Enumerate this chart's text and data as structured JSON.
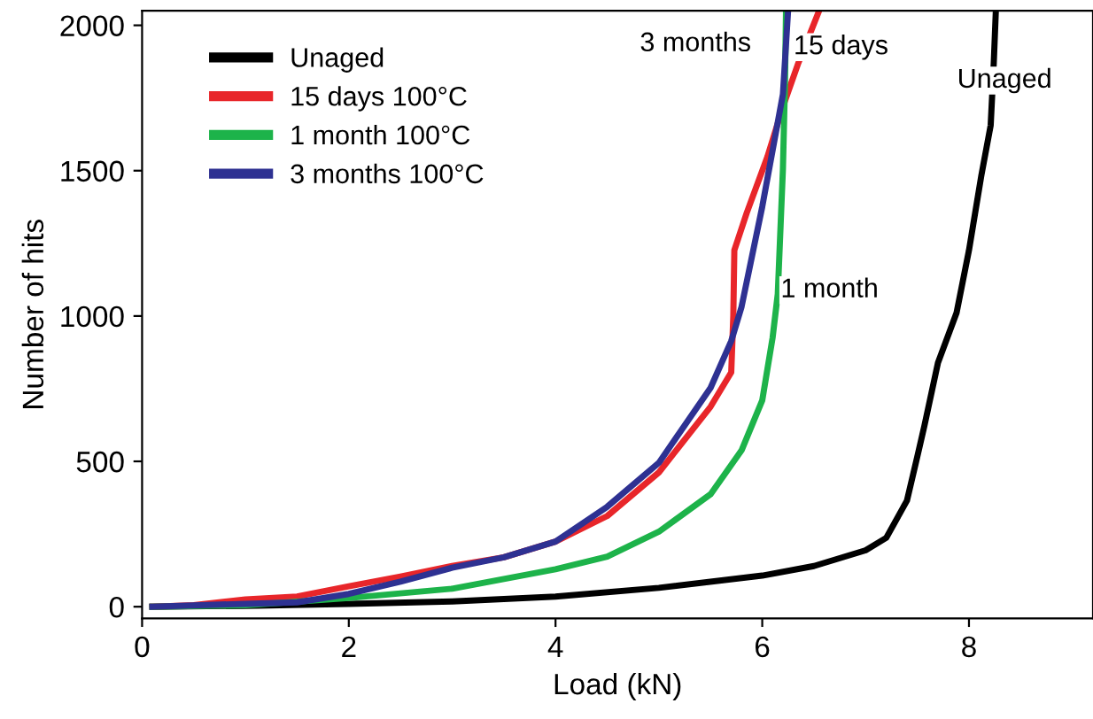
{
  "chart_data": {
    "type": "line",
    "xlabel": "Load (kN)",
    "ylabel": "Number of hits",
    "xlim": [
      0,
      9.2
    ],
    "ylim": [
      -40,
      2050
    ],
    "xticks": [
      0,
      2,
      4,
      6,
      8
    ],
    "yticks": [
      0,
      500,
      1000,
      1500,
      2000
    ],
    "grid": false,
    "legend": "top left",
    "marker": "none",
    "line_style": "solid",
    "series": [
      {
        "name": "Unaged",
        "color": "#000000",
        "x": [
          0.1,
          1,
          2,
          3,
          4,
          5,
          6,
          6.5,
          7,
          7.2,
          7.4,
          7.5,
          7.57,
          7.7,
          7.88,
          8.0,
          8.12,
          8.21,
          8.24,
          8.26
        ],
        "values": [
          0,
          3,
          10,
          18,
          35,
          65,
          107,
          140,
          194,
          237,
          365,
          516,
          624,
          839,
          1011,
          1226,
          1484,
          1656,
          1871,
          2050
        ]
      },
      {
        "name": "15 days 100°C",
        "color": "#e8262a",
        "x": [
          0.1,
          0.5,
          1,
          1.5,
          2,
          2.5,
          3,
          3.5,
          4,
          4.5,
          5,
          5.5,
          5.7,
          5.72,
          5.73,
          5.85,
          6.05,
          6.2,
          6.35,
          6.55
        ],
        "values": [
          0,
          5,
          25,
          35,
          70,
          104,
          140,
          170,
          224,
          312,
          462,
          688,
          806,
          1000,
          1226,
          1355,
          1548,
          1720,
          1871,
          2050
        ]
      },
      {
        "name": "1 month 100°C",
        "color": "#1db34a",
        "x": [
          0.1,
          1,
          2,
          3,
          4,
          4.5,
          5,
          5.5,
          5.8,
          6,
          6.1,
          6.15,
          6.2,
          6.22,
          6.23
        ],
        "values": [
          0,
          5,
          30,
          62,
          129,
          172,
          258,
          387,
          538,
          710,
          925,
          1075,
          1505,
          1800,
          2050
        ]
      },
      {
        "name": "3 months 100°C",
        "color": "#2e3192",
        "x": [
          0.1,
          1,
          1.5,
          2,
          2.5,
          3,
          3.5,
          4,
          4.5,
          5,
          5.5,
          5.7,
          5.8,
          6,
          6.1,
          6.2,
          6.25
        ],
        "values": [
          0,
          10,
          15,
          44,
          86,
          134,
          170,
          224,
          344,
          495,
          753,
          914,
          1032,
          1376,
          1570,
          1763,
          2050
        ]
      }
    ],
    "annotations": [
      "3 months",
      "15 days",
      "1 month",
      "Unaged"
    ]
  }
}
